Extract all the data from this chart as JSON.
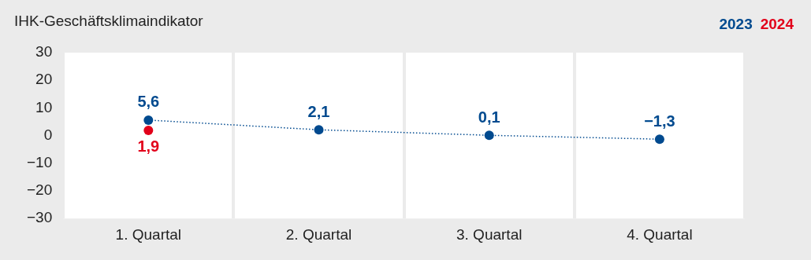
{
  "chart_data": {
    "type": "line",
    "title": "IHK-Geschäftsklimaindikator",
    "categories": [
      "1. Quartal",
      "2. Quartal",
      "3. Quartal",
      "4. Quartal"
    ],
    "series": [
      {
        "name": "2023",
        "color": "#004a8f",
        "values": [
          5.6,
          2.1,
          0.1,
          -1.3
        ],
        "value_labels": [
          "5,6",
          "2,1",
          "0,1",
          "−1,3"
        ]
      },
      {
        "name": "2024",
        "color": "#e2001a",
        "values": [
          1.9,
          null,
          null,
          null
        ],
        "value_labels": [
          "1,9",
          null,
          null,
          null
        ]
      }
    ],
    "ylim": [
      -30,
      30
    ],
    "yticks": [
      {
        "value": -30,
        "label": "−30"
      },
      {
        "value": -20,
        "label": "−20"
      },
      {
        "value": -10,
        "label": "−10"
      },
      0,
      10,
      20,
      30
    ],
    "grid": "x",
    "legend": "top right",
    "marker": "circle",
    "line_style": "dotted"
  }
}
